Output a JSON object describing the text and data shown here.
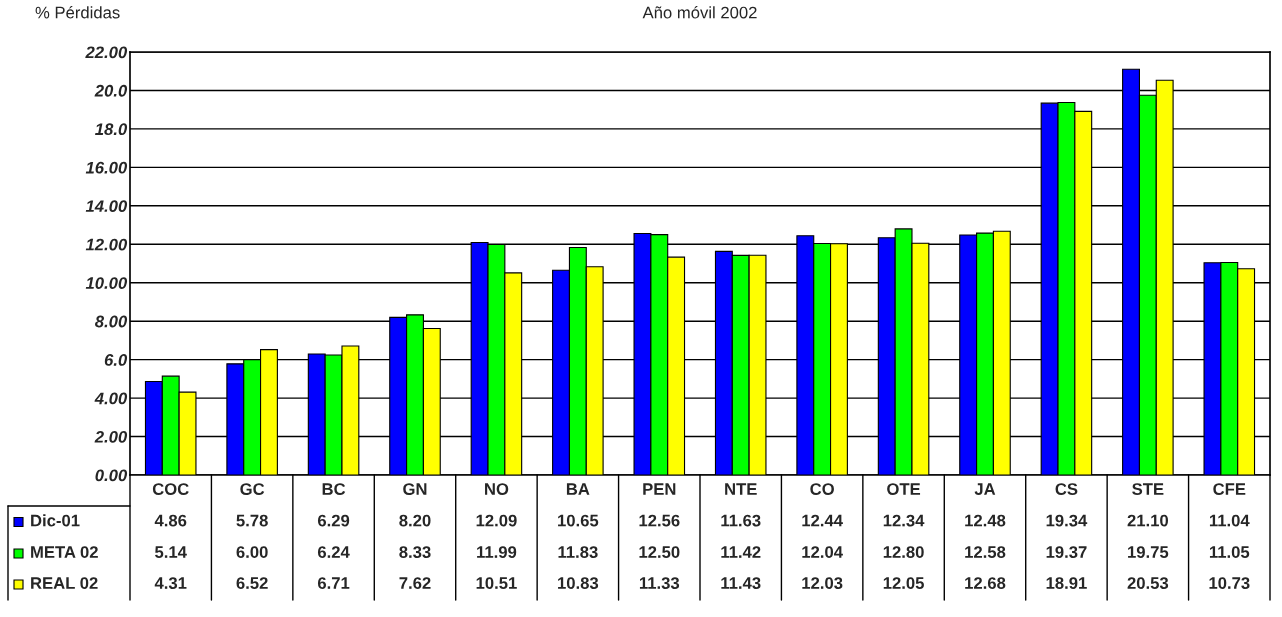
{
  "chart_data": {
    "type": "bar",
    "title": "Año móvil 2002",
    "ylabel": "% Pérdidas",
    "categories": [
      "COC",
      "GC",
      "BC",
      "GN",
      "NO",
      "BA",
      "PEN",
      "NTE",
      "CO",
      "OTE",
      "JA",
      "CS",
      "STE",
      "CFE"
    ],
    "series": [
      {
        "name": "Dic-01",
        "color": "#0000ff",
        "values": [
          4.86,
          5.78,
          6.29,
          8.2,
          12.09,
          10.65,
          12.56,
          11.63,
          12.44,
          12.34,
          12.48,
          19.34,
          21.1,
          11.04
        ],
        "value_labels": [
          "4.86",
          "5.78",
          "6.29",
          "8.20",
          "12.09",
          "10.65",
          "12.56",
          "11.63",
          "12.44",
          "12.34",
          "12.48",
          "19.34",
          "21.10",
          "11.04"
        ]
      },
      {
        "name": "META 02",
        "color": "#00ff00",
        "values": [
          5.14,
          6.0,
          6.24,
          8.33,
          11.99,
          11.83,
          12.5,
          11.42,
          12.04,
          12.8,
          12.58,
          19.37,
          19.75,
          11.05
        ],
        "value_labels": [
          "5.14",
          "6.00",
          "6.24",
          "8.33",
          "11.99",
          "11.83",
          "12.50",
          "11.42",
          "12.04",
          "12.80",
          "12.58",
          "19.37",
          "19.75",
          "11.05"
        ]
      },
      {
        "name": "REAL 02",
        "color": "#ffff00",
        "values": [
          4.31,
          6.52,
          6.71,
          7.62,
          10.51,
          10.83,
          11.33,
          11.43,
          12.03,
          12.05,
          12.68,
          18.91,
          20.53,
          10.73
        ],
        "value_labels": [
          "4.31",
          "6.52",
          "6.71",
          "7.62",
          "10.51",
          "10.83",
          "11.33",
          "11.43",
          "12.03",
          "12.05",
          "12.68",
          "18.91",
          "20.53",
          "10.73"
        ]
      }
    ],
    "ylim": [
      0,
      22
    ],
    "yticks": [
      {
        "value": 0,
        "label": "0.00"
      },
      {
        "value": 2,
        "label": "2.00"
      },
      {
        "value": 4,
        "label": "4.00"
      },
      {
        "value": 6,
        "label": "6.0"
      },
      {
        "value": 8,
        "label": "8.00"
      },
      {
        "value": 10,
        "label": "10.00"
      },
      {
        "value": 12,
        "label": "12.00"
      },
      {
        "value": 14,
        "label": "14.00"
      },
      {
        "value": 16,
        "label": "16.00"
      },
      {
        "value": 18,
        "label": "18.0"
      },
      {
        "value": 20,
        "label": "20.0"
      },
      {
        "value": 22,
        "label": "22.00"
      }
    ],
    "grid": "y",
    "legend": "bottom left"
  }
}
